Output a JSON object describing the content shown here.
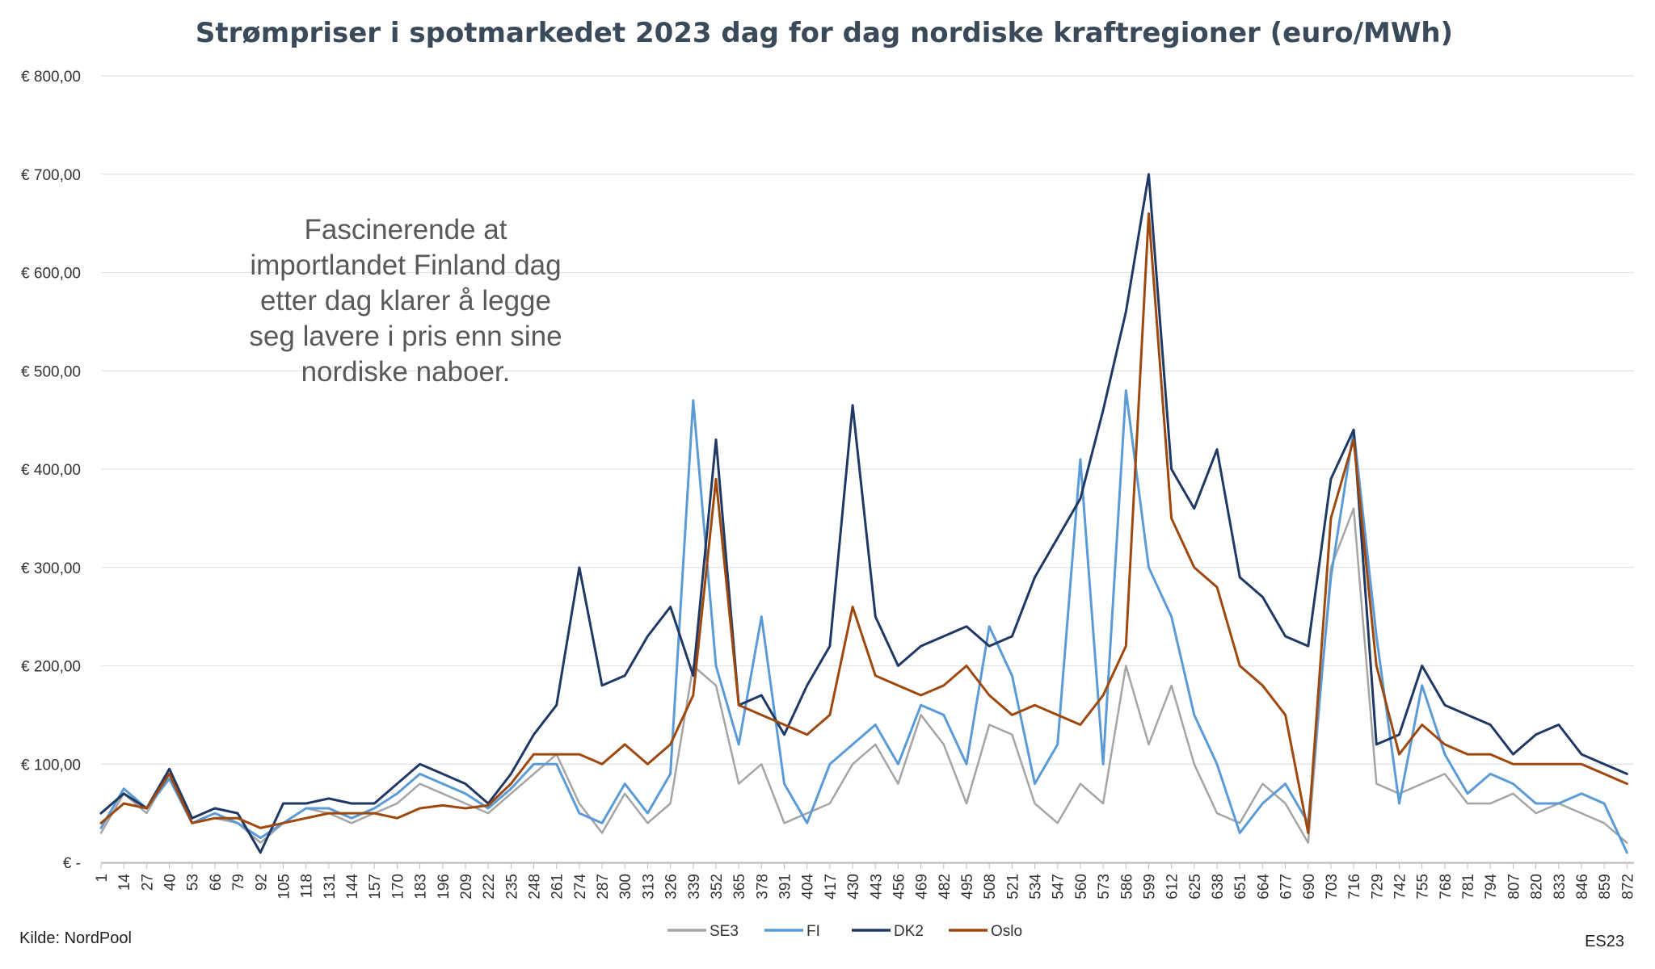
{
  "chart_data": {
    "type": "line",
    "title": "Strømpriser i spotmarkedet 2023 dag for dag nordiske kraftregioner (euro/MWh)",
    "xlabel": "",
    "ylabel": "",
    "ylim": [
      0,
      800
    ],
    "y_ticks": [
      "€ -",
      "€ 100,00",
      "€ 200,00",
      "€ 300,00",
      "€ 400,00",
      "€ 500,00",
      "€ 600,00",
      "€ 700,00",
      "€ 800,00"
    ],
    "x_ticks": [
      1,
      14,
      27,
      40,
      53,
      66,
      79,
      92,
      105,
      118,
      131,
      144,
      157,
      170,
      183,
      196,
      209,
      222,
      235,
      248,
      261,
      274,
      287,
      300,
      313,
      326,
      339,
      352,
      365,
      378,
      391,
      404,
      417,
      430,
      443,
      456,
      469,
      482,
      495,
      508,
      521,
      534,
      547,
      560,
      573,
      586,
      599,
      612,
      625,
      638,
      651,
      664,
      677,
      690,
      703,
      716,
      729,
      742,
      755,
      768,
      781,
      794,
      807,
      820,
      833,
      846,
      859,
      872
    ],
    "xlim": [
      1,
      876
    ],
    "grid": true,
    "legend_position": "bottom",
    "series": [
      {
        "name": "SE3",
        "color": "#a5a5a5",
        "x": [
          1,
          14,
          27,
          40,
          53,
          66,
          79,
          92,
          105,
          118,
          131,
          144,
          157,
          170,
          183,
          196,
          209,
          222,
          235,
          248,
          261,
          274,
          287,
          300,
          313,
          326,
          339,
          352,
          365,
          378,
          391,
          404,
          417,
          430,
          443,
          456,
          469,
          482,
          495,
          508,
          521,
          534,
          547,
          560,
          573,
          586,
          599,
          612,
          625,
          638,
          651,
          664,
          677,
          690,
          703,
          716,
          729,
          742,
          755,
          768,
          781,
          794,
          807,
          820,
          833,
          846,
          859,
          872
        ],
        "values": [
          30,
          70,
          50,
          90,
          40,
          45,
          40,
          20,
          40,
          55,
          50,
          40,
          50,
          60,
          80,
          70,
          60,
          50,
          70,
          90,
          110,
          60,
          30,
          70,
          40,
          60,
          200,
          180,
          80,
          100,
          40,
          50,
          60,
          100,
          120,
          80,
          150,
          120,
          60,
          140,
          130,
          60,
          40,
          80,
          60,
          200,
          120,
          180,
          100,
          50,
          40,
          80,
          60,
          20,
          300,
          360,
          80,
          70,
          80,
          90,
          60,
          60,
          70,
          50,
          60,
          50,
          40,
          20
        ]
      },
      {
        "name": "FI",
        "color": "#5b9bd5",
        "x": [
          1,
          14,
          27,
          40,
          53,
          66,
          79,
          92,
          105,
          118,
          131,
          144,
          157,
          170,
          183,
          196,
          209,
          222,
          235,
          248,
          261,
          274,
          287,
          300,
          313,
          326,
          339,
          352,
          365,
          378,
          391,
          404,
          417,
          430,
          443,
          456,
          469,
          482,
          495,
          508,
          521,
          534,
          547,
          560,
          573,
          586,
          599,
          612,
          625,
          638,
          651,
          664,
          677,
          690,
          703,
          716,
          729,
          742,
          755,
          768,
          781,
          794,
          807,
          820,
          833,
          846,
          859,
          872
        ],
        "values": [
          35,
          75,
          55,
          85,
          40,
          50,
          40,
          25,
          40,
          55,
          55,
          45,
          55,
          70,
          90,
          80,
          70,
          55,
          75,
          100,
          100,
          50,
          40,
          80,
          50,
          90,
          470,
          200,
          120,
          250,
          80,
          40,
          100,
          120,
          140,
          100,
          160,
          150,
          100,
          240,
          190,
          80,
          120,
          410,
          100,
          480,
          300,
          250,
          150,
          100,
          30,
          60,
          80,
          40,
          290,
          440,
          230,
          60,
          180,
          110,
          70,
          90,
          80,
          60,
          60,
          70,
          60,
          10
        ]
      },
      {
        "name": "DK2",
        "color": "#1f3864",
        "x": [
          1,
          14,
          27,
          40,
          53,
          66,
          79,
          92,
          105,
          118,
          131,
          144,
          157,
          170,
          183,
          196,
          209,
          222,
          235,
          248,
          261,
          274,
          287,
          300,
          313,
          326,
          339,
          352,
          365,
          378,
          391,
          404,
          417,
          430,
          443,
          456,
          469,
          482,
          495,
          508,
          521,
          534,
          547,
          560,
          573,
          586,
          599,
          612,
          625,
          638,
          651,
          664,
          677,
          690,
          703,
          716,
          729,
          742,
          755,
          768,
          781,
          794,
          807,
          820,
          833,
          846,
          859,
          872
        ],
        "values": [
          50,
          70,
          55,
          95,
          45,
          55,
          50,
          10,
          60,
          60,
          65,
          60,
          60,
          80,
          100,
          90,
          80,
          60,
          90,
          130,
          160,
          300,
          180,
          190,
          230,
          260,
          190,
          430,
          160,
          170,
          130,
          180,
          220,
          465,
          250,
          200,
          220,
          230,
          240,
          220,
          230,
          290,
          330,
          370,
          460,
          560,
          700,
          400,
          360,
          420,
          290,
          270,
          230,
          220,
          390,
          440,
          120,
          130,
          200,
          160,
          150,
          140,
          110,
          130,
          140,
          110,
          100,
          90
        ]
      },
      {
        "name": "Oslo",
        "color": "#9e480e",
        "x": [
          1,
          14,
          27,
          40,
          53,
          66,
          79,
          92,
          105,
          118,
          131,
          144,
          157,
          170,
          183,
          196,
          209,
          222,
          235,
          248,
          261,
          274,
          287,
          300,
          313,
          326,
          339,
          352,
          365,
          378,
          391,
          404,
          417,
          430,
          443,
          456,
          469,
          482,
          495,
          508,
          521,
          534,
          547,
          560,
          573,
          586,
          599,
          612,
          625,
          638,
          651,
          664,
          677,
          690,
          703,
          716,
          729,
          742,
          755,
          768,
          781,
          794,
          807,
          820,
          833,
          846,
          859,
          872
        ],
        "values": [
          40,
          60,
          55,
          90,
          40,
          45,
          45,
          35,
          40,
          45,
          50,
          50,
          50,
          45,
          55,
          58,
          55,
          58,
          80,
          110,
          110,
          110,
          100,
          120,
          100,
          120,
          170,
          390,
          160,
          150,
          140,
          130,
          150,
          260,
          190,
          180,
          170,
          180,
          200,
          170,
          150,
          160,
          150,
          140,
          170,
          220,
          660,
          350,
          300,
          280,
          200,
          180,
          150,
          30,
          350,
          430,
          200,
          110,
          140,
          120,
          110,
          110,
          100,
          100,
          100,
          100,
          90,
          80
        ]
      }
    ],
    "annotation": "Fascinerende at importlandet Finland dag etter dag klarer å legge seg lavere i pris enn sine nordiske naboer."
  },
  "footer": {
    "source": "Kilde: NordPool",
    "signature": "ES23"
  }
}
